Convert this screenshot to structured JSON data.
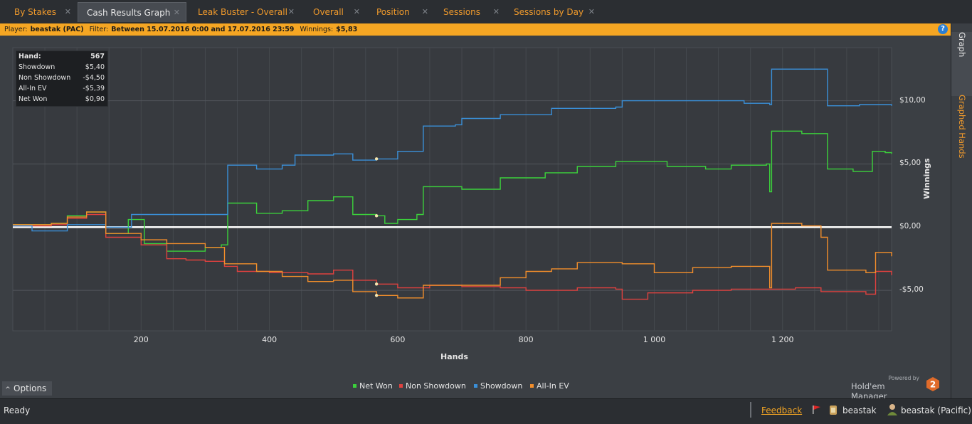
{
  "tabs": [
    {
      "label": "By Stakes",
      "active": false
    },
    {
      "label": "Cash Results Graph",
      "active": true
    },
    {
      "label": "Leak Buster - Overall",
      "active": false
    },
    {
      "label": "Overall",
      "active": false
    },
    {
      "label": "Position",
      "active": false
    },
    {
      "label": "Sessions",
      "active": false
    },
    {
      "label": "Sessions by Day",
      "active": false
    }
  ],
  "filter": {
    "player_label": "Player:",
    "player": "beastak (PAC)",
    "filter_label": "Filter:",
    "filter": "Between 15.07.2016 0:00 and 17.07.2016 23:59",
    "winnings_label": "Winnings:",
    "winnings": "$5,83",
    "help": "?"
  },
  "side_tabs": {
    "graph": "Graph",
    "graphed_hands": "Graphed Hands"
  },
  "stats": [
    {
      "label": "Hand:",
      "value": "567",
      "bold": true
    },
    {
      "label": "Showdown",
      "value": "$5,40"
    },
    {
      "label": "Non Showdown",
      "value": "-$4,50"
    },
    {
      "label": "All-In EV",
      "value": "-$5,39"
    },
    {
      "label": "Net Won",
      "value": "$0,90"
    }
  ],
  "options_label": "Options",
  "brand": {
    "powered": "Powered by",
    "name": "Hold'em Manager",
    "version": "2"
  },
  "status": {
    "ready": "Ready",
    "feedback": "Feedback",
    "user": "beastak",
    "user_site": "beastak (Pacific)"
  },
  "colors": {
    "net_won": "#3bd13b",
    "non_showdown": "#e0413f",
    "showdown": "#3a8fd8",
    "all_in_ev": "#f28e2b",
    "accent": "#f5a623"
  },
  "chart_data": {
    "type": "line",
    "xlabel": "Hands",
    "ylabel": "Winnings",
    "xlim": [
      0,
      1370
    ],
    "ylim": [
      -8.2,
      14.2
    ],
    "x_ticks": [
      200,
      400,
      600,
      800,
      1000,
      1200
    ],
    "x_tick_labels": [
      "200",
      "400",
      "600",
      "800",
      "1 000",
      "1 200"
    ],
    "y_ticks": [
      -5,
      0,
      5,
      10
    ],
    "y_tick_labels": [
      "-$5,00",
      "$0,00",
      "$5,00",
      "$10,00"
    ],
    "grid": true,
    "legend_position": "bottom",
    "highlight_x": 567,
    "series": [
      {
        "name": "Net Won",
        "color": "#3bd13b",
        "points": [
          [
            0,
            0.2
          ],
          [
            60,
            0.3
          ],
          [
            85,
            0.9
          ],
          [
            115,
            1.2
          ],
          [
            145,
            -0.5
          ],
          [
            180,
            0.6
          ],
          [
            205,
            -1.3
          ],
          [
            240,
            -1.9
          ],
          [
            300,
            -1.6
          ],
          [
            325,
            -1.4
          ],
          [
            335,
            1.9
          ],
          [
            380,
            1.1
          ],
          [
            420,
            1.3
          ],
          [
            460,
            2.1
          ],
          [
            500,
            2.4
          ],
          [
            530,
            1.0
          ],
          [
            567,
            0.9
          ],
          [
            580,
            0.3
          ],
          [
            600,
            0.6
          ],
          [
            630,
            1.0
          ],
          [
            640,
            3.2
          ],
          [
            700,
            3.0
          ],
          [
            760,
            3.9
          ],
          [
            830,
            4.3
          ],
          [
            880,
            4.8
          ],
          [
            940,
            5.2
          ],
          [
            1020,
            4.8
          ],
          [
            1080,
            4.6
          ],
          [
            1120,
            4.9
          ],
          [
            1175,
            5.0
          ],
          [
            1180,
            2.8
          ],
          [
            1183,
            7.6
          ],
          [
            1230,
            7.4
          ],
          [
            1260,
            7.4
          ],
          [
            1270,
            4.6
          ],
          [
            1310,
            4.4
          ],
          [
            1330,
            4.4
          ],
          [
            1340,
            6.0
          ],
          [
            1360,
            5.9
          ],
          [
            1370,
            5.8
          ]
        ]
      },
      {
        "name": "Non Showdown",
        "color": "#e0413f",
        "points": [
          [
            0,
            0.1
          ],
          [
            60,
            0.2
          ],
          [
            85,
            0.7
          ],
          [
            115,
            1.0
          ],
          [
            145,
            -0.8
          ],
          [
            200,
            -1.4
          ],
          [
            240,
            -2.5
          ],
          [
            270,
            -2.6
          ],
          [
            300,
            -2.7
          ],
          [
            330,
            -3.1
          ],
          [
            350,
            -3.5
          ],
          [
            400,
            -3.6
          ],
          [
            460,
            -3.7
          ],
          [
            500,
            -3.4
          ],
          [
            530,
            -4.2
          ],
          [
            567,
            -4.5
          ],
          [
            600,
            -4.8
          ],
          [
            650,
            -4.6
          ],
          [
            700,
            -4.7
          ],
          [
            760,
            -4.8
          ],
          [
            800,
            -5.0
          ],
          [
            880,
            -4.8
          ],
          [
            940,
            -4.9
          ],
          [
            950,
            -5.7
          ],
          [
            990,
            -5.2
          ],
          [
            1060,
            -5.0
          ],
          [
            1120,
            -4.9
          ],
          [
            1180,
            -4.9
          ],
          [
            1220,
            -4.8
          ],
          [
            1260,
            -5.1
          ],
          [
            1300,
            -5.1
          ],
          [
            1330,
            -5.3
          ],
          [
            1345,
            -3.5
          ],
          [
            1370,
            -3.8
          ]
        ]
      },
      {
        "name": "Showdown",
        "color": "#3a8fd8",
        "points": [
          [
            0,
            0.1
          ],
          [
            30,
            -0.3
          ],
          [
            85,
            0.2
          ],
          [
            145,
            0.0
          ],
          [
            185,
            1.0
          ],
          [
            240,
            1.0
          ],
          [
            300,
            1.0
          ],
          [
            330,
            1.0
          ],
          [
            335,
            4.9
          ],
          [
            380,
            4.6
          ],
          [
            420,
            4.9
          ],
          [
            440,
            5.7
          ],
          [
            500,
            5.8
          ],
          [
            530,
            5.3
          ],
          [
            567,
            5.4
          ],
          [
            600,
            6.0
          ],
          [
            630,
            6.0
          ],
          [
            640,
            8.0
          ],
          [
            690,
            8.1
          ],
          [
            700,
            8.6
          ],
          [
            760,
            8.9
          ],
          [
            840,
            9.4
          ],
          [
            940,
            9.5
          ],
          [
            950,
            10.0
          ],
          [
            1060,
            10.0
          ],
          [
            1140,
            9.8
          ],
          [
            1180,
            9.7
          ],
          [
            1183,
            12.5
          ],
          [
            1265,
            12.5
          ],
          [
            1270,
            9.6
          ],
          [
            1320,
            9.7
          ],
          [
            1370,
            9.6
          ]
        ]
      },
      {
        "name": "All-In EV",
        "color": "#f28e2b",
        "points": [
          [
            0,
            0.2
          ],
          [
            60,
            0.3
          ],
          [
            85,
            0.8
          ],
          [
            115,
            1.2
          ],
          [
            145,
            -0.5
          ],
          [
            200,
            -1.0
          ],
          [
            240,
            -1.3
          ],
          [
            300,
            -1.6
          ],
          [
            330,
            -2.9
          ],
          [
            380,
            -3.5
          ],
          [
            420,
            -3.9
          ],
          [
            460,
            -4.3
          ],
          [
            500,
            -4.2
          ],
          [
            530,
            -5.1
          ],
          [
            567,
            -5.4
          ],
          [
            600,
            -5.6
          ],
          [
            640,
            -4.6
          ],
          [
            700,
            -4.6
          ],
          [
            760,
            -4.0
          ],
          [
            800,
            -3.5
          ],
          [
            840,
            -3.3
          ],
          [
            880,
            -2.8
          ],
          [
            920,
            -2.8
          ],
          [
            950,
            -2.9
          ],
          [
            1000,
            -3.6
          ],
          [
            1060,
            -3.2
          ],
          [
            1120,
            -3.1
          ],
          [
            1175,
            -3.1
          ],
          [
            1180,
            -4.8
          ],
          [
            1183,
            0.3
          ],
          [
            1230,
            0.1
          ],
          [
            1260,
            -0.8
          ],
          [
            1270,
            -3.4
          ],
          [
            1310,
            -3.4
          ],
          [
            1330,
            -3.6
          ],
          [
            1345,
            -2.0
          ],
          [
            1370,
            -2.3
          ]
        ]
      }
    ]
  }
}
